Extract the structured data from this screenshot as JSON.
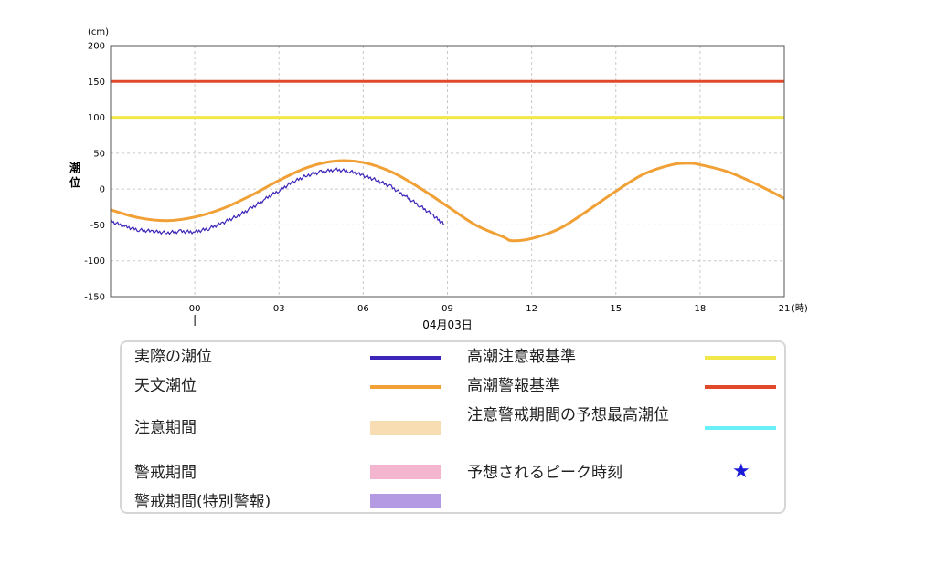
{
  "chart_data": {
    "type": "line",
    "unit_label": "(cm)",
    "ylabel": "潮位",
    "x_unit_label": "(時)",
    "date_label": "04月03日",
    "ylim": [
      -150,
      200
    ],
    "yticks": [
      200,
      150,
      100,
      50,
      0,
      -50,
      -100,
      -150
    ],
    "xlim": [
      -3,
      21
    ],
    "xticks": [
      {
        "h": 0,
        "label": "00"
      },
      {
        "h": 3,
        "label": "03"
      },
      {
        "h": 6,
        "label": "06"
      },
      {
        "h": 9,
        "label": "09"
      },
      {
        "h": 12,
        "label": "12"
      },
      {
        "h": 15,
        "label": "15"
      },
      {
        "h": 18,
        "label": "18"
      },
      {
        "h": 21,
        "label": "21"
      }
    ],
    "grid": true,
    "thresholds": [
      {
        "name": "高潮注意報基準",
        "value": 100,
        "color": "#f2e84a"
      },
      {
        "name": "高潮警報基準",
        "value": 150,
        "color": "#e04a2a"
      }
    ],
    "series": [
      {
        "name": "天文潮位",
        "color": "#f0a035",
        "x": [
          -3,
          -2,
          -1,
          0,
          1,
          2,
          3,
          4,
          5,
          6,
          7,
          8,
          9,
          10,
          11,
          11.3,
          12,
          13,
          14,
          15,
          16,
          17,
          17.6,
          18,
          19,
          20,
          21
        ],
        "y": [
          -29,
          -40,
          -44,
          -39,
          -27,
          -9,
          12,
          30,
          39,
          37,
          24,
          2,
          -24,
          -50,
          -67,
          -72,
          -69,
          -55,
          -30,
          -3,
          21,
          34,
          36,
          34,
          24,
          7,
          -13
        ]
      },
      {
        "name": "実際の潮位",
        "color": "#3a25b8",
        "x": [
          -3,
          -2.5,
          -2,
          -1.5,
          -1,
          -0.5,
          0,
          0.5,
          1,
          1.5,
          2,
          2.5,
          3,
          3.5,
          4,
          4.5,
          5,
          5.5,
          6,
          6.5,
          7,
          7.5,
          8,
          8.5,
          8.9
        ],
        "y": [
          -45,
          -52,
          -57,
          -59,
          -61,
          -59,
          -60,
          -55,
          -47,
          -38,
          -27,
          -14,
          -2,
          10,
          19,
          24,
          27,
          25,
          19,
          12,
          3,
          -10,
          -23,
          -37,
          -50
        ]
      }
    ]
  },
  "legend": {
    "left": [
      {
        "label": "実際の潮位",
        "kind": "line",
        "color": "#3a25b8"
      },
      {
        "label": "天文潮位",
        "kind": "line",
        "color": "#f0a035"
      },
      {
        "label": "注意期間",
        "kind": "band",
        "color": "#f9ddb2"
      },
      {
        "label": "警戒期間",
        "kind": "band",
        "color": "#f4b6cf"
      },
      {
        "label": "警戒期間(特別警報)",
        "kind": "band",
        "color": "#b39ae2"
      }
    ],
    "right": [
      {
        "label": "高潮注意報基準",
        "kind": "line",
        "color": "#f2e84a"
      },
      {
        "label": "高潮警報基準",
        "kind": "line",
        "color": "#e04a2a"
      },
      {
        "label": "注意警戒期間の予想最高潮位",
        "kind": "line",
        "color": "#6cf0f8"
      },
      {
        "label": "予想されるピーク時刻",
        "kind": "star",
        "color": "#1a1ad6",
        "symbol": "★"
      }
    ]
  }
}
